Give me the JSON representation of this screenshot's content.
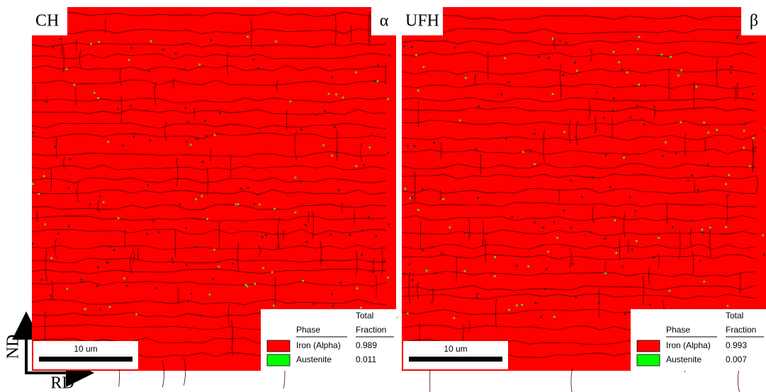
{
  "axes": {
    "vertical": "ND",
    "horizontal": "RD"
  },
  "panels": [
    {
      "label": "CH",
      "symbol": "α",
      "scale_bar": "10 um",
      "legend": {
        "total": "Total",
        "phase_header": "Phase",
        "fraction_header": "Fraction",
        "rows": [
          {
            "phase": "Iron (Alpha)",
            "fraction": "0.989"
          },
          {
            "phase": "Austenite",
            "fraction": "0.011"
          }
        ]
      }
    },
    {
      "label": "UFH",
      "symbol": "β",
      "scale_bar": "10 um",
      "legend": {
        "total": "Total",
        "phase_header": "Phase",
        "fraction_header": "Fraction",
        "rows": [
          {
            "phase": "Iron (Alpha)",
            "fraction": "0.993"
          },
          {
            "phase": "Austenite",
            "fraction": "0.007"
          }
        ]
      }
    }
  ]
}
